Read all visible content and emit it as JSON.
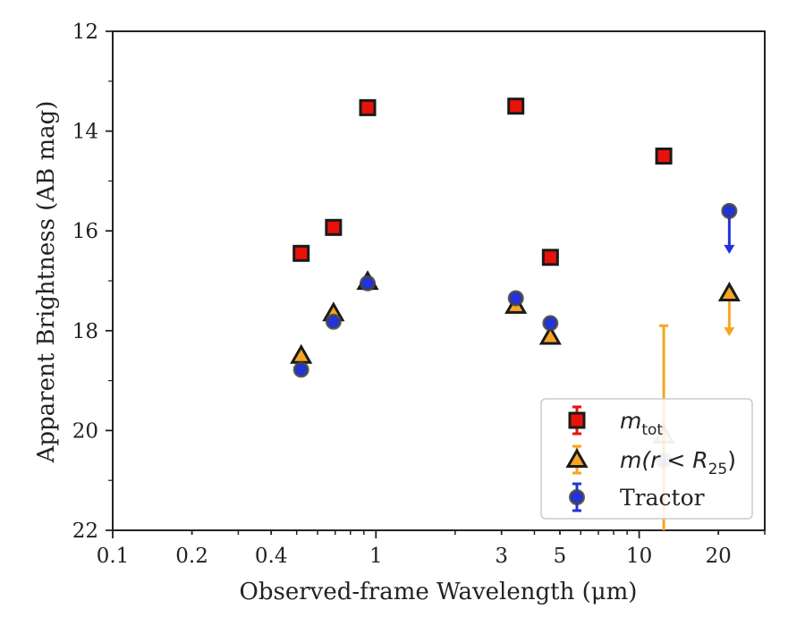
{
  "chart_data": {
    "type": "scatter",
    "title": "",
    "xlabel": "Observed-frame Wavelength (μm)",
    "ylabel": "Apparent Brightness (AB mag)",
    "xscale": "log",
    "xlim": [
      0.1,
      30
    ],
    "ylim": [
      22,
      12
    ],
    "y_inverted": true,
    "grid": false,
    "legend_position": "lower-right",
    "x_ticks": [
      {
        "value": 0.1,
        "label": "0.1"
      },
      {
        "value": 0.2,
        "label": "0.2"
      },
      {
        "value": 0.4,
        "label": "0.4"
      },
      {
        "value": 1,
        "label": "1"
      },
      {
        "value": 3,
        "label": "3"
      },
      {
        "value": 5,
        "label": "5"
      },
      {
        "value": 10,
        "label": "10"
      },
      {
        "value": 20,
        "label": "20"
      }
    ],
    "y_ticks": [
      {
        "value": 12,
        "label": "12"
      },
      {
        "value": 14,
        "label": "14"
      },
      {
        "value": 16,
        "label": "16"
      },
      {
        "value": 18,
        "label": "18"
      },
      {
        "value": 20,
        "label": "20"
      },
      {
        "value": 22,
        "label": "22"
      }
    ],
    "series": [
      {
        "name": "m_tot",
        "marker": "square",
        "color": "#e8120b",
        "points": [
          {
            "x": 0.52,
            "y": 16.45
          },
          {
            "x": 0.69,
            "y": 15.93
          },
          {
            "x": 0.93,
            "y": 13.53
          },
          {
            "x": 3.4,
            "y": 13.5
          },
          {
            "x": 4.6,
            "y": 16.53
          },
          {
            "x": 12.4,
            "y": 14.5
          }
        ]
      },
      {
        "name": "m(r < R25)",
        "marker": "triangle",
        "color": "#f6a623",
        "points": [
          {
            "x": 0.52,
            "y": 18.5
          },
          {
            "x": 0.69,
            "y": 17.65
          },
          {
            "x": 0.93,
            "y": 17.02
          },
          {
            "x": 3.4,
            "y": 17.5
          },
          {
            "x": 4.6,
            "y": 18.12
          },
          {
            "x": 12.4,
            "y": 20.1,
            "yerr_low": 2.2,
            "yerr_high": 2.25,
            "faded": true
          },
          {
            "x": 22.0,
            "y": 17.25,
            "upper_limit": true
          }
        ]
      },
      {
        "name": "Tractor",
        "marker": "circle",
        "color": "#2233dd",
        "points": [
          {
            "x": 0.52,
            "y": 18.78
          },
          {
            "x": 0.69,
            "y": 17.82
          },
          {
            "x": 0.93,
            "y": 17.05
          },
          {
            "x": 3.4,
            "y": 17.35
          },
          {
            "x": 4.6,
            "y": 17.85
          },
          {
            "x": 12.4,
            "y": 20.6,
            "faded": true
          },
          {
            "x": 22.0,
            "y": 15.6,
            "upper_limit": true
          }
        ]
      }
    ],
    "legend": [
      {
        "label_main": "m",
        "label_sub": "tot"
      },
      {
        "label_main": "m(r < R",
        "label_sub": "25",
        "label_end": ")"
      },
      {
        "label_main": "Tractor",
        "label_sub": ""
      }
    ]
  }
}
